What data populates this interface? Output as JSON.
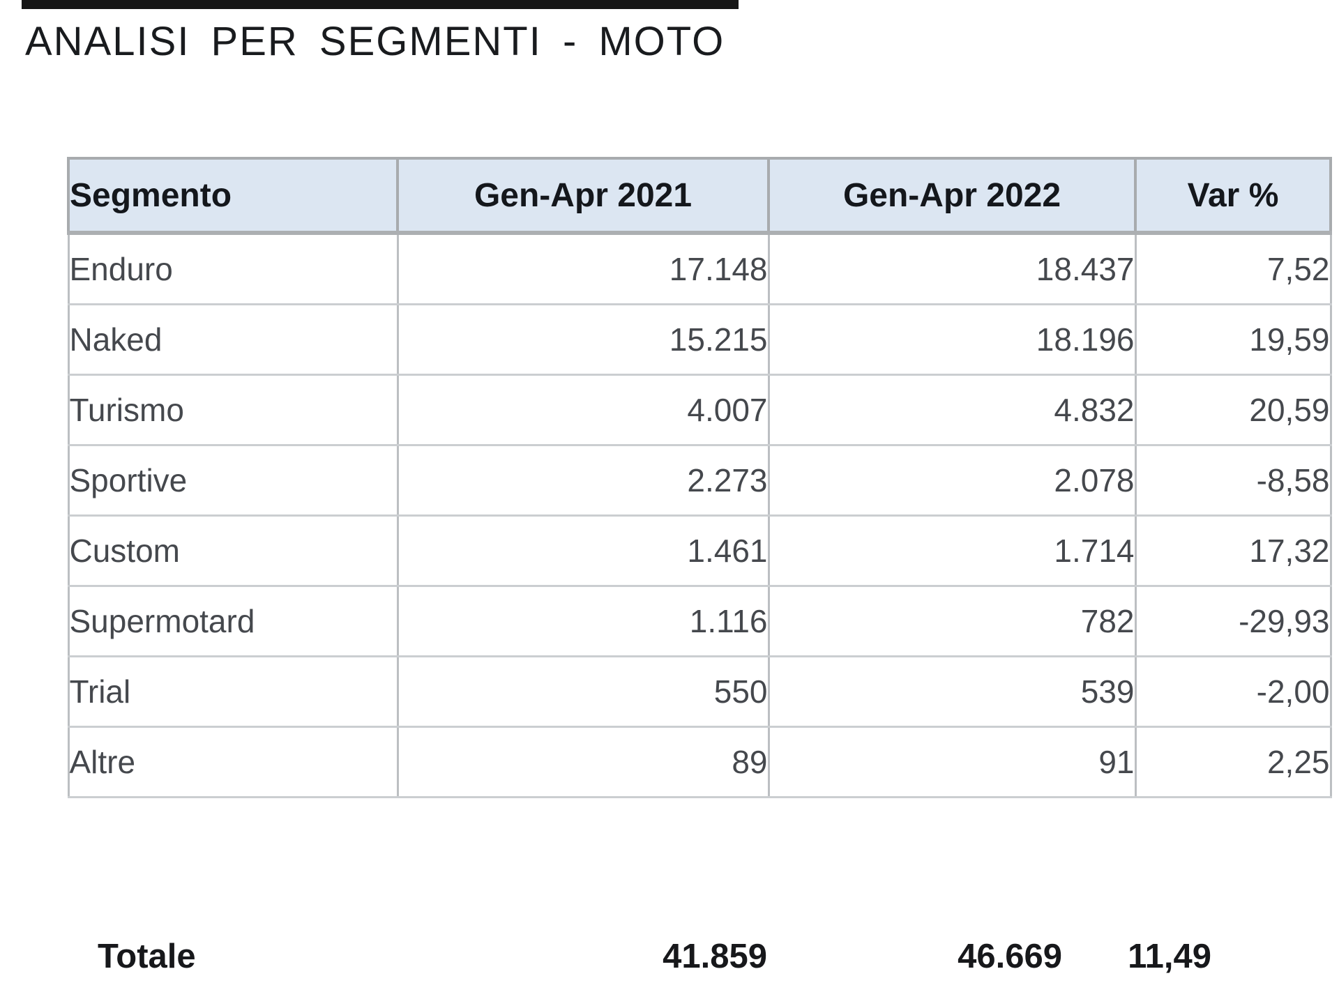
{
  "page": {
    "title": "ANALISI PER SEGMENTI - MOTO"
  },
  "table": {
    "headers": [
      "Segmento",
      "Gen-Apr 2021",
      "Gen-Apr 2022",
      "Var %"
    ],
    "rows": [
      {
        "segment": "Enduro",
        "gen_apr_2021": "17.148",
        "gen_apr_2022": "18.437",
        "var_pct": "7,52"
      },
      {
        "segment": "Naked",
        "gen_apr_2021": "15.215",
        "gen_apr_2022": "18.196",
        "var_pct": "19,59"
      },
      {
        "segment": "Turismo",
        "gen_apr_2021": "4.007",
        "gen_apr_2022": "4.832",
        "var_pct": "20,59"
      },
      {
        "segment": "Sportive",
        "gen_apr_2021": "2.273",
        "gen_apr_2022": "2.078",
        "var_pct": "-8,58"
      },
      {
        "segment": "Custom",
        "gen_apr_2021": "1.461",
        "gen_apr_2022": "1.714",
        "var_pct": "17,32"
      },
      {
        "segment": "Supermotard",
        "gen_apr_2021": "1.116",
        "gen_apr_2022": "782",
        "var_pct": "-29,93"
      },
      {
        "segment": "Trial",
        "gen_apr_2021": "550",
        "gen_apr_2022": "539",
        "var_pct": "-2,00"
      },
      {
        "segment": "Altre",
        "gen_apr_2021": "89",
        "gen_apr_2022": "91",
        "var_pct": "2,25"
      }
    ],
    "total": {
      "label": "Totale",
      "gen_apr_2021": "41.859",
      "gen_apr_2022": "46.669",
      "var_pct": "11,49"
    }
  }
}
